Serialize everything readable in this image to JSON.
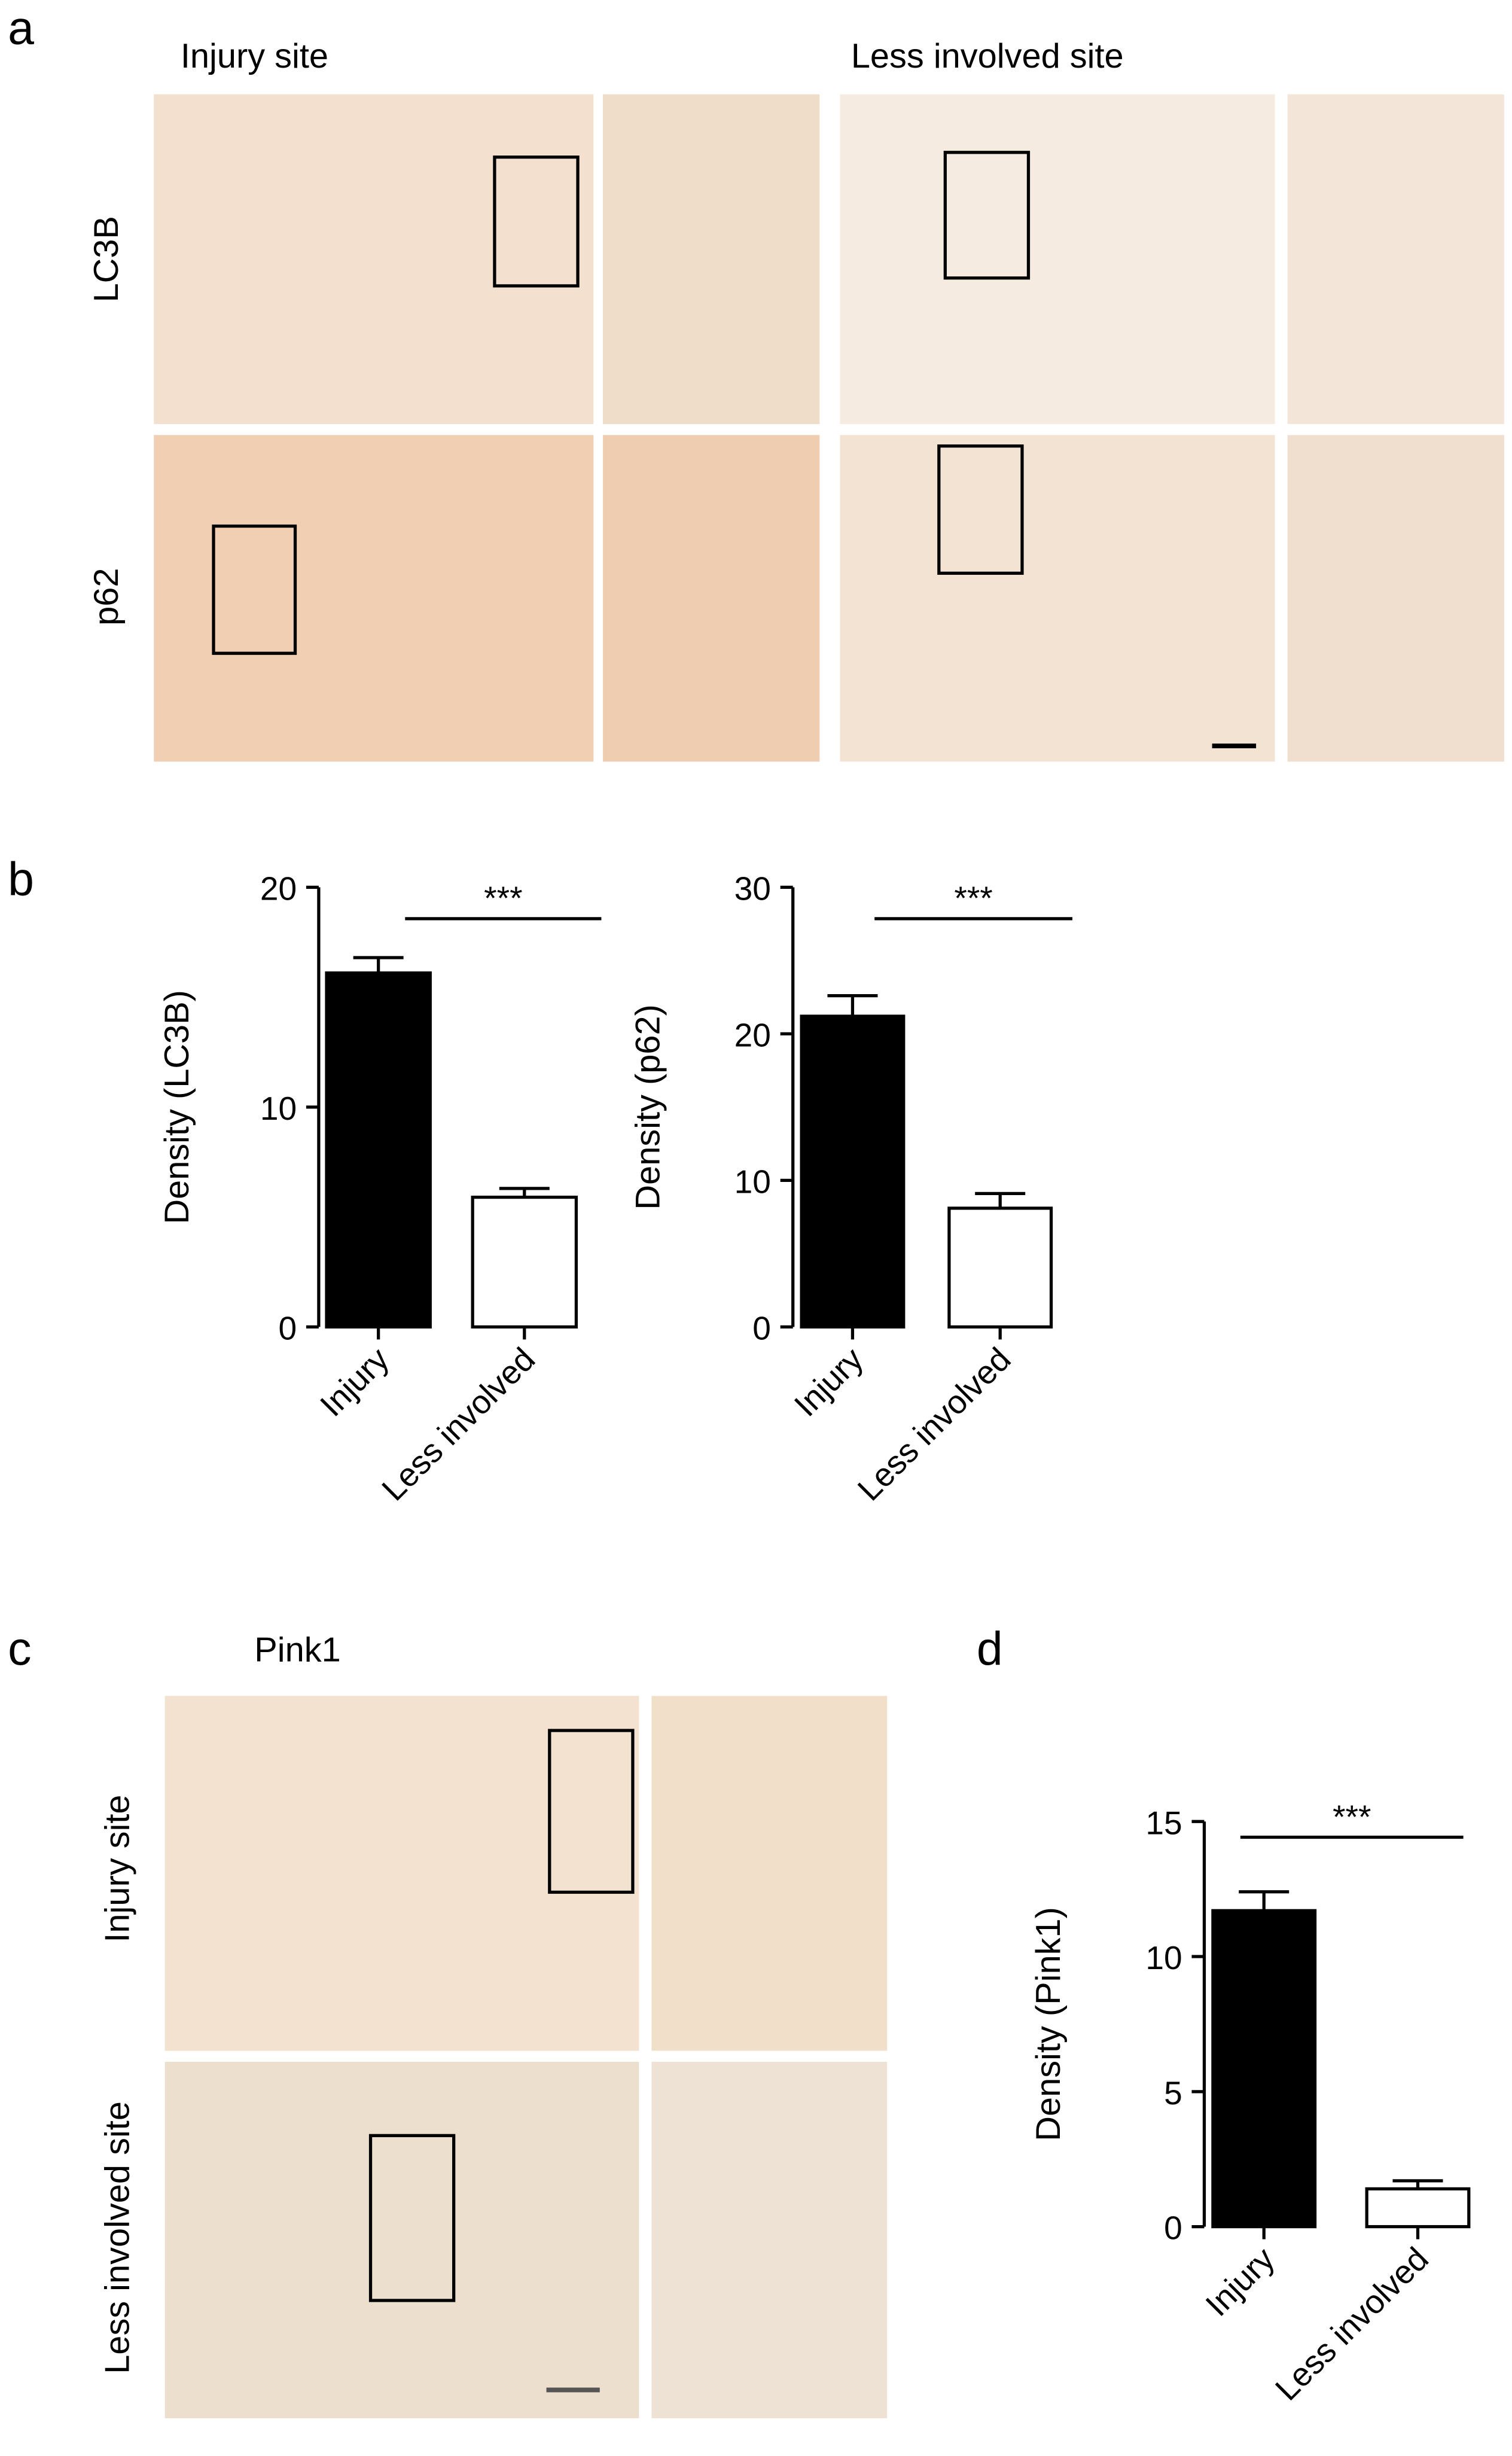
{
  "panel_labels": [
    "a",
    "b",
    "c",
    "d"
  ],
  "panel_a": {
    "column_labels": [
      "Injury site",
      "Less involved site"
    ],
    "row_labels": [
      "LC3B",
      "p62"
    ]
  },
  "panel_c": {
    "title": "Pink1",
    "row_labels": [
      "Injury site",
      "Less involved site"
    ]
  },
  "chart_data": [
    {
      "type": "bar",
      "y_label": "Density (LC3B)",
      "categories": [
        "Injury",
        "Less involved"
      ],
      "values": [
        16.1,
        5.9
      ],
      "errors": [
        0.7,
        0.4
      ],
      "colors": [
        "#000000",
        "#ffffff"
      ],
      "ylim": [
        0,
        20
      ],
      "yticks": [
        0,
        10,
        20
      ],
      "annotation": "***"
    },
    {
      "type": "bar",
      "y_label": "Density (p62)",
      "categories": [
        "Injury",
        "Less involved"
      ],
      "values": [
        21.2,
        8.1
      ],
      "errors": [
        1.4,
        1.0
      ],
      "colors": [
        "#000000",
        "#ffffff"
      ],
      "ylim": [
        0,
        30
      ],
      "yticks": [
        0,
        10,
        20,
        30
      ],
      "annotation": "***"
    },
    {
      "type": "bar",
      "y_label": "Density (Pink1)",
      "categories": [
        "Injury",
        "Less involved"
      ],
      "values": [
        11.7,
        1.4
      ],
      "errors": [
        0.7,
        0.3
      ],
      "colors": [
        "#000000",
        "#ffffff"
      ],
      "ylim": [
        0,
        15
      ],
      "yticks": [
        0,
        5,
        10,
        15
      ],
      "annotation": "***"
    }
  ]
}
